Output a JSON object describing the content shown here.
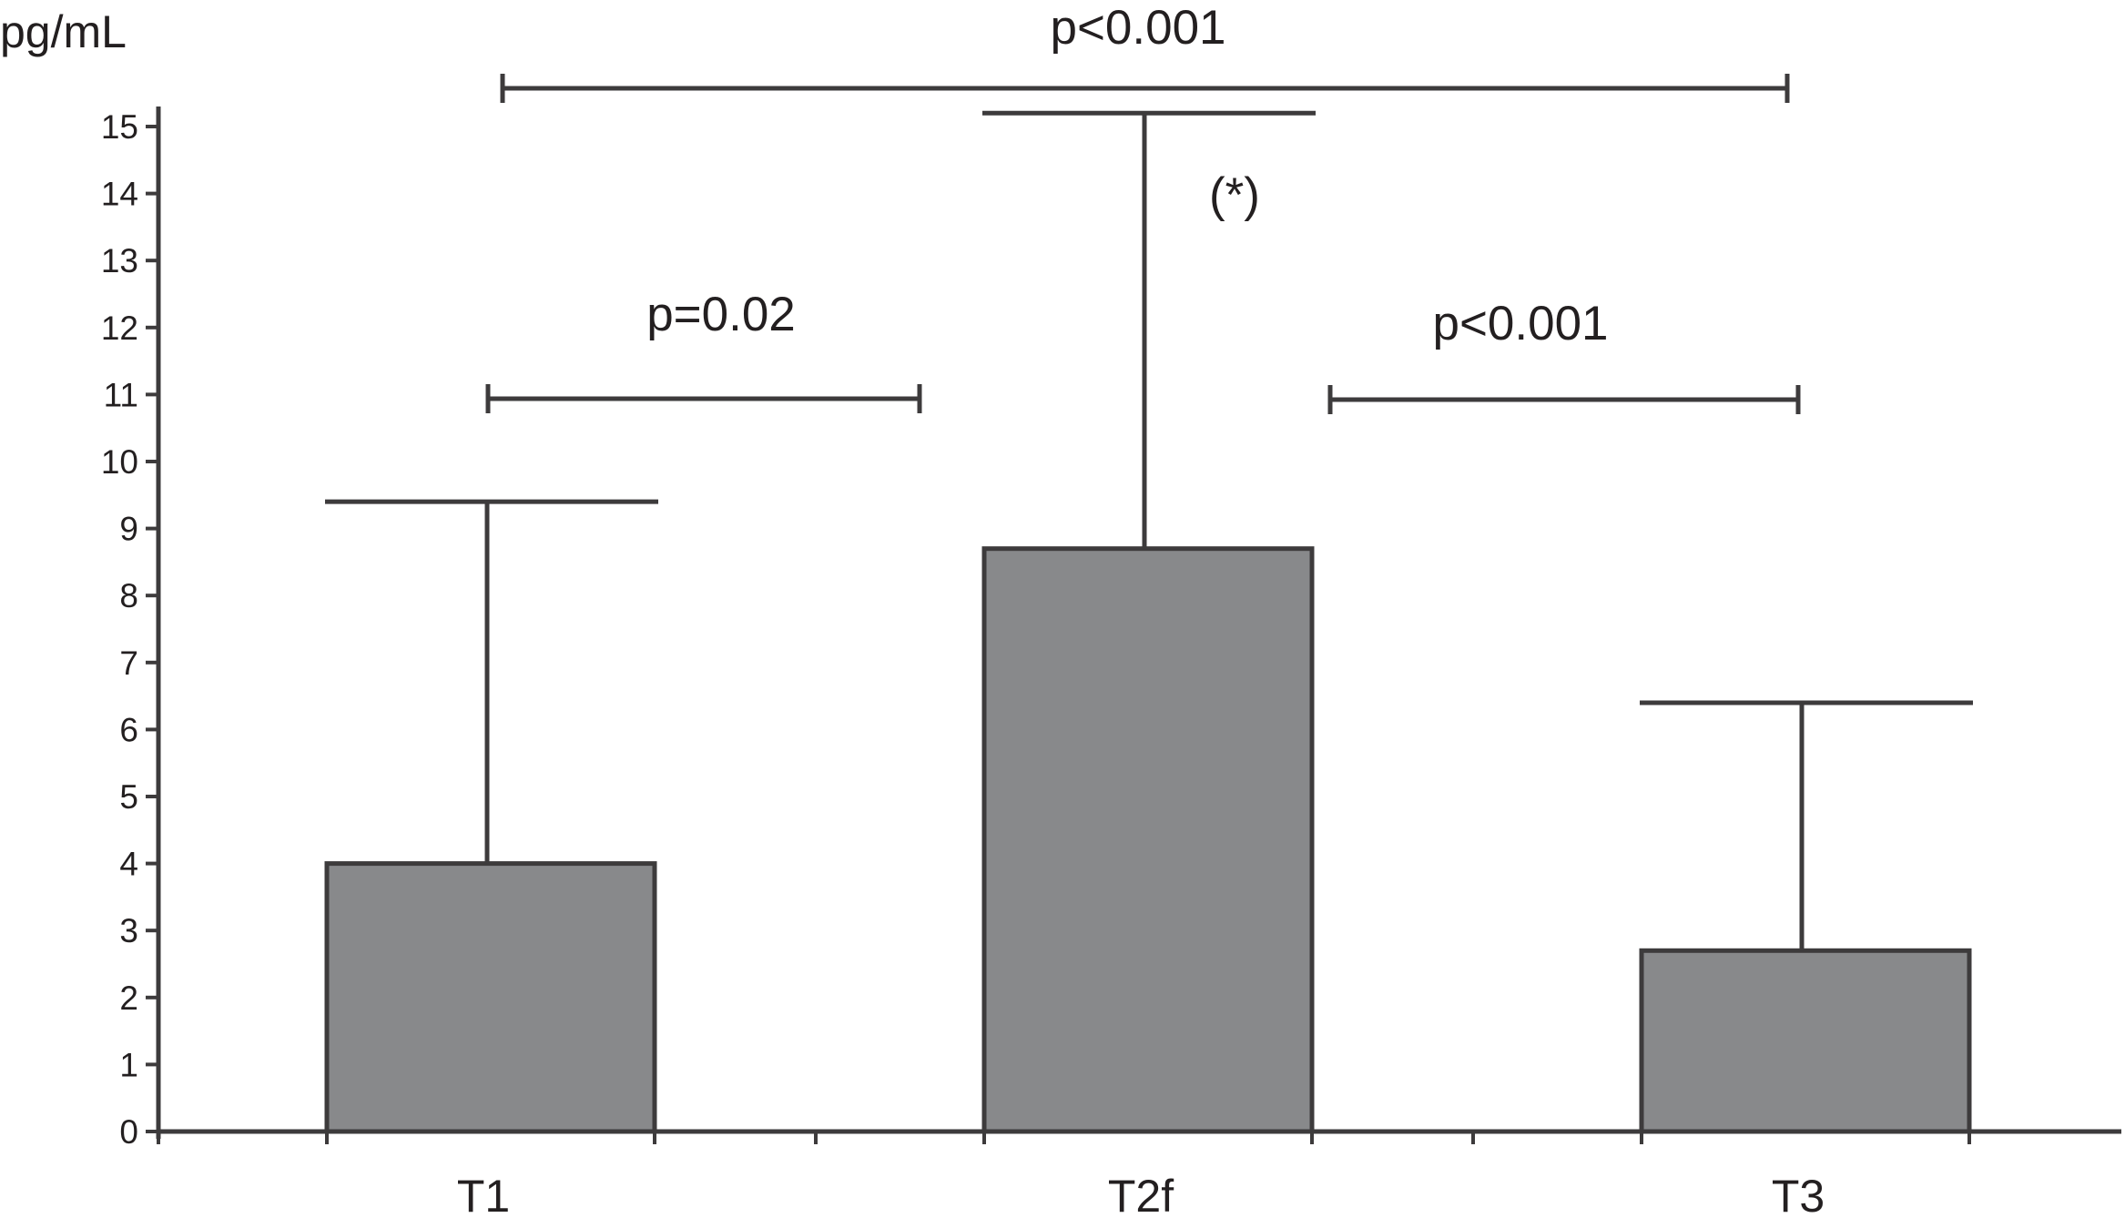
{
  "chart_data": {
    "type": "bar",
    "ylabel": "pg/mL",
    "xlabel": "",
    "categories": [
      "T1",
      "T2f",
      "T3"
    ],
    "values": [
      4.0,
      8.7,
      2.7
    ],
    "error_upper": [
      9.4,
      15.2,
      6.4
    ],
    "ylim": [
      0,
      15
    ],
    "yticks": [
      "0",
      "1",
      "2",
      "3",
      "4",
      "5",
      "6",
      "7",
      "8",
      "9",
      "10",
      "11",
      "12",
      "13",
      "14",
      "15"
    ],
    "grid": false,
    "legend": "none",
    "bar_color": "#88898b",
    "line_color": "#3d3b3c",
    "comparisons": [
      {
        "from": "T1",
        "to": "T2f",
        "label": "p=0.02"
      },
      {
        "from": "T2f",
        "to": "T3",
        "label": "p<0.001"
      },
      {
        "from": "T1",
        "to": "T3",
        "label": "p<0.001"
      }
    ],
    "annotations": [
      {
        "category": "T2f",
        "text": "(*)"
      }
    ]
  }
}
